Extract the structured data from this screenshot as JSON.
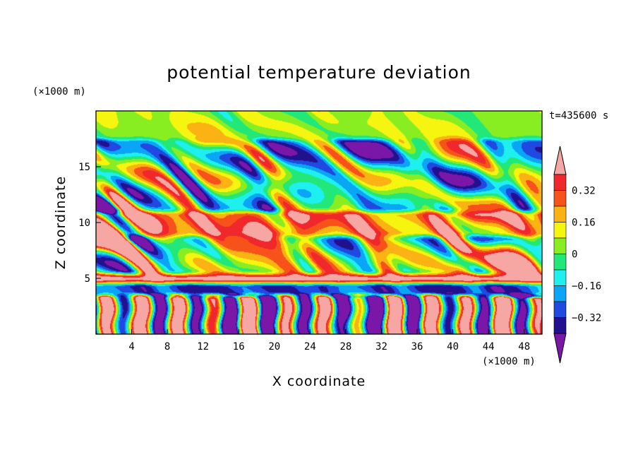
{
  "chart_data": {
    "type": "heatmap",
    "title": "potential temperature deviation",
    "xlabel": "X coordinate",
    "ylabel": "Z coordinate",
    "x_unit": "(×1000 m)",
    "y_unit": "(×1000 m)",
    "time_label": "t=435600 s",
    "xlim": [
      0,
      50
    ],
    "ylim": [
      0,
      20
    ],
    "x_ticks": [
      4,
      8,
      12,
      16,
      20,
      24,
      28,
      32,
      36,
      40,
      44,
      48
    ],
    "y_ticks": [
      5,
      10,
      15
    ],
    "grid": false,
    "colorbar": {
      "placement": "right",
      "levels": [
        -0.4,
        -0.32,
        -0.24,
        -0.16,
        -0.08,
        0,
        0.08,
        0.16,
        0.24,
        0.32,
        0.4
      ],
      "tick_labels": [
        "0.32",
        "0.16",
        "0",
        "-0.16",
        "-0.32"
      ],
      "tick_values": [
        0.32,
        0.16,
        0,
        -0.16,
        -0.32
      ],
      "colors": [
        "#7b17a8",
        "#22118f",
        "#1f49e0",
        "#0aa6f5",
        "#1ef0ef",
        "#22e87a",
        "#88ee22",
        "#f5f510",
        "#fbb313",
        "#f7521a",
        "#f0272b",
        "#f6a6a3"
      ]
    },
    "bands": [
      {
        "z": [
          0.0,
          3.5
        ],
        "mean": 0.02,
        "amp": 0.35,
        "style": "plume"
      },
      {
        "z": [
          3.5,
          4.6
        ],
        "mean": -0.3,
        "amp": 0.12,
        "style": "smooth"
      },
      {
        "z": [
          4.6,
          5.4
        ],
        "mean": 0.45,
        "amp": 0.05,
        "style": "smooth"
      },
      {
        "z": [
          5.4,
          8.8
        ],
        "mean": 0.1,
        "amp": 0.5,
        "style": "blob"
      },
      {
        "z": [
          8.8,
          11.0
        ],
        "mean": 0.3,
        "amp": 0.25,
        "style": "blob"
      },
      {
        "z": [
          11.0,
          17.5
        ],
        "mean": -0.05,
        "amp": 0.4,
        "style": "blob"
      },
      {
        "z": [
          17.5,
          20.0
        ],
        "mean": 0.05,
        "amp": 0.12,
        "style": "smooth"
      }
    ]
  }
}
